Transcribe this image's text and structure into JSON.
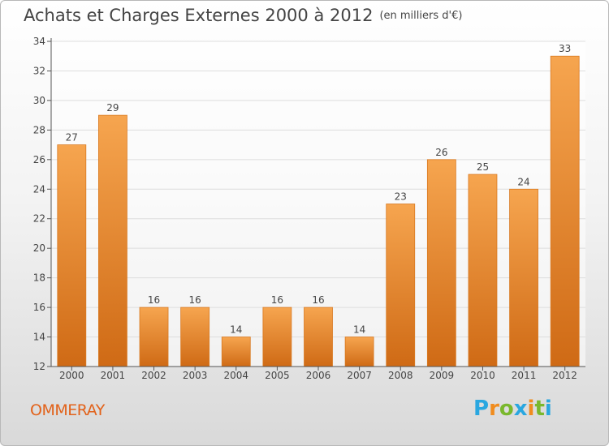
{
  "title": "Achats et Charges Externes 2000 à 2012",
  "unit": "(en milliers d'€)",
  "commune": "OMMERAY",
  "logo": {
    "text": "Proxiti",
    "letters": [
      {
        "ch": "P",
        "color": "#2aa7e0"
      },
      {
        "ch": "r",
        "color": "#f08c1e"
      },
      {
        "ch": "o",
        "color": "#7ab82d"
      },
      {
        "ch": "x",
        "color": "#2aa7e0"
      },
      {
        "ch": "i",
        "color": "#f08c1e"
      },
      {
        "ch": "t",
        "color": "#7ab82d"
      },
      {
        "ch": "i",
        "color": "#2aa7e0"
      }
    ]
  },
  "chart_data": {
    "type": "bar",
    "title": "Achats et Charges Externes 2000 à 2012",
    "subtitle": "(en milliers d'€)",
    "xlabel": "",
    "ylabel": "",
    "categories": [
      "2000",
      "2001",
      "2002",
      "2003",
      "2004",
      "2005",
      "2006",
      "2007",
      "2008",
      "2009",
      "2010",
      "2011",
      "2012"
    ],
    "values": [
      27,
      29,
      16,
      16,
      14,
      16,
      16,
      14,
      23,
      26,
      25,
      24,
      33
    ],
    "ylim": [
      12,
      34
    ],
    "yticks": [
      12,
      14,
      16,
      18,
      20,
      22,
      24,
      26,
      28,
      30,
      32,
      34
    ],
    "grid": true,
    "legend": "none",
    "colors": {
      "bar_top": "#f6a54f",
      "bar_bottom": "#cf6a15",
      "bar_edge": "#d97a22",
      "grid": "#dddddd",
      "axis": "#555555",
      "text": "#444444"
    }
  }
}
